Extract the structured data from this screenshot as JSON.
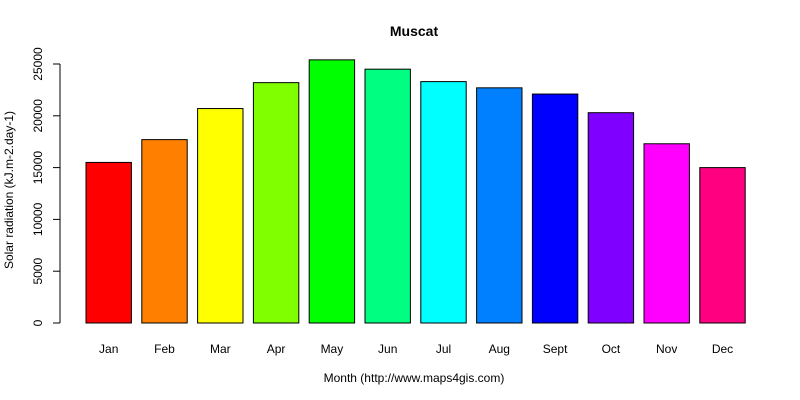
{
  "chart_data": {
    "type": "bar",
    "title": "Muscat",
    "xlabel": "Month (http://www.maps4gis.com)",
    "ylabel": "Solar radiation (kJ.m-2.day-1)",
    "categories": [
      "Jan",
      "Feb",
      "Mar",
      "Apr",
      "May",
      "Jun",
      "Jul",
      "Aug",
      "Sept",
      "Oct",
      "Nov",
      "Dec"
    ],
    "values": [
      15500,
      17700,
      20700,
      23200,
      25400,
      24500,
      23300,
      22700,
      22100,
      20300,
      17300,
      15000
    ],
    "colors": [
      "#FF0000",
      "#FF8000",
      "#FFFF00",
      "#80FF00",
      "#00FF00",
      "#00FF80",
      "#00FFFF",
      "#0080FF",
      "#0000FF",
      "#8000FF",
      "#FF00FF",
      "#FF0080"
    ],
    "yticks": [
      "0",
      "5000",
      "10000",
      "15000",
      "20000",
      "25000"
    ],
    "ylim": [
      0,
      25400
    ],
    "grid": false,
    "legend": "none"
  }
}
